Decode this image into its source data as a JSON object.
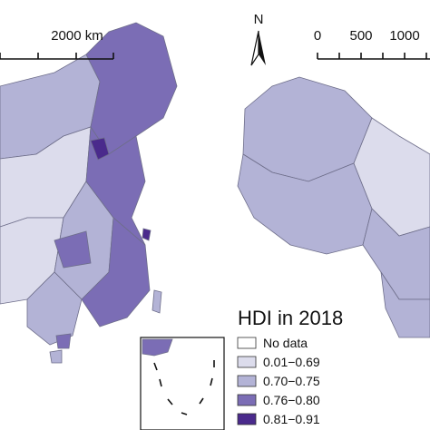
{
  "scale_bar_left": {
    "label": "2000 km"
  },
  "north_arrow": {
    "label": "N"
  },
  "scale_bar_right": {
    "ticks": [
      "0",
      "500",
      "1000"
    ]
  },
  "legend": {
    "title": "HDI in 2018",
    "items": [
      {
        "label": "No data",
        "color": "#ffffff"
      },
      {
        "label": "0.01−0.69",
        "color": "#dcdcec"
      },
      {
        "label": "0.70−0.75",
        "color": "#b3b3d6"
      },
      {
        "label": "0.76−0.80",
        "color": "#7b6db5"
      },
      {
        "label": "0.81−0.91",
        "color": "#4a2a8c"
      }
    ]
  }
}
